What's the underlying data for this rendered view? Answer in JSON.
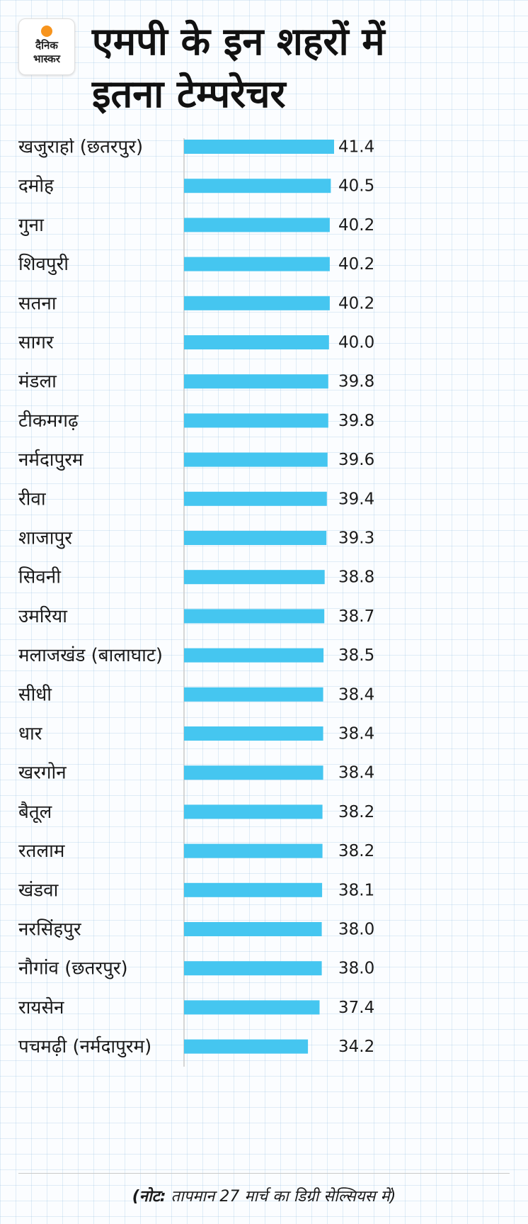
{
  "brand": {
    "logo_line1": "दैनिक",
    "logo_line2": "भास्कर",
    "accent_color": "#f7941d"
  },
  "header": {
    "title_line1": "एमपी के इन शहरों में",
    "title_line2": "इतना टेम्परेचर"
  },
  "note": {
    "prefix": "(नोट:",
    "text": " तापमान 27 मार्च का डिग्री सेल्सियस में)"
  },
  "chart_data": {
    "type": "bar",
    "orientation": "horizontal",
    "bar_color": "#45c6f0",
    "title": "एमपी के इन शहरों में इतना टेम्परेचर",
    "xlim": [
      0,
      41.4
    ],
    "categories": [
      "खजुराहो (छतरपुर)",
      "दमोह",
      "गुना",
      "शिवपुरी",
      "सतना",
      "सागर",
      "मंडला",
      "टीकमगढ़",
      "नर्मदापुरम",
      "रीवा",
      "शाजापुर",
      "सिवनी",
      "उमरिया",
      "मलाजखंड (बालाघाट)",
      "सीधी",
      "धार",
      "खरगोन",
      "बैतूल",
      "रतलाम",
      "खंडवा",
      "नरसिंहपुर",
      "नौगांव (छतरपुर)",
      "रायसेन",
      "पचमढ़ी (नर्मदापुरम)"
    ],
    "values": [
      41.4,
      40.5,
      40.2,
      40.2,
      40.2,
      40.0,
      39.8,
      39.8,
      39.6,
      39.4,
      39.3,
      38.8,
      38.7,
      38.5,
      38.4,
      38.4,
      38.4,
      38.2,
      38.2,
      38.1,
      38.0,
      38.0,
      37.4,
      34.2
    ],
    "value_labels": [
      "41.4",
      "40.5",
      "40.2",
      "40.2",
      "40.2",
      "40.0",
      "39.8",
      "39.8",
      "39.6",
      "39.4",
      "39.3",
      "38.8",
      "38.7",
      "38.5",
      "38.4",
      "38.4",
      "38.4",
      "38.2",
      "38.2",
      "38.1",
      "38.0",
      "38.0",
      "37.4",
      "34.2"
    ]
  }
}
